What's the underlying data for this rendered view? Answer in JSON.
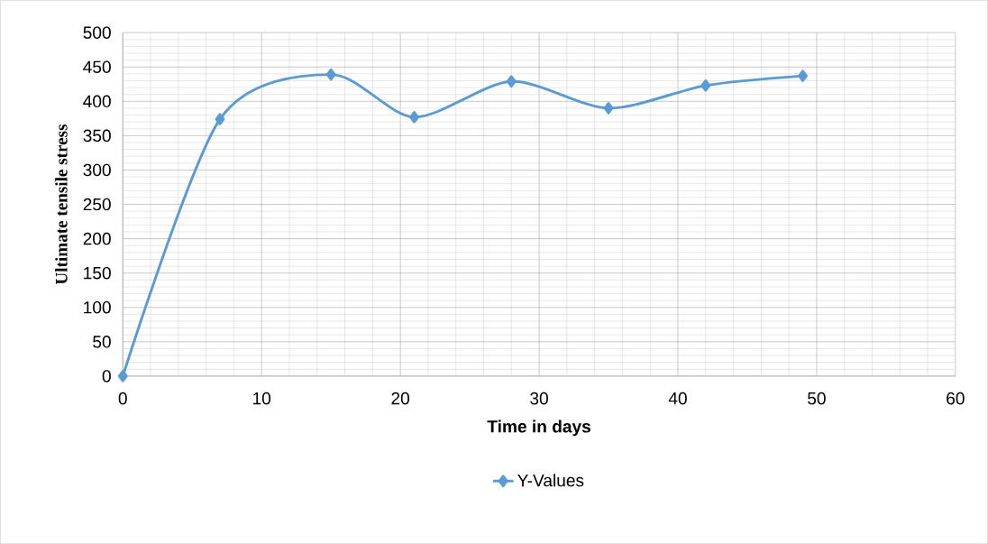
{
  "chart_data": {
    "type": "line",
    "xlabel": "Time in days",
    "ylabel": "Ultimate  tensile  stress",
    "x": [
      0,
      7,
      15,
      21,
      28,
      35,
      42,
      49
    ],
    "series": [
      {
        "name": "Y-Values",
        "color": "#5b9bd5",
        "values": [
          0,
          374,
          439,
          377,
          429,
          390,
          423,
          437
        ]
      }
    ],
    "xlim": [
      0,
      60
    ],
    "xticks": [
      0,
      10,
      20,
      30,
      40,
      50,
      60
    ],
    "ylim": [
      0,
      500
    ],
    "yticks": [
      0,
      50,
      100,
      150,
      200,
      250,
      300,
      350,
      400,
      450,
      500
    ],
    "grid": true,
    "legend": "bottom",
    "marker": "diamond",
    "line_style": "solid"
  }
}
